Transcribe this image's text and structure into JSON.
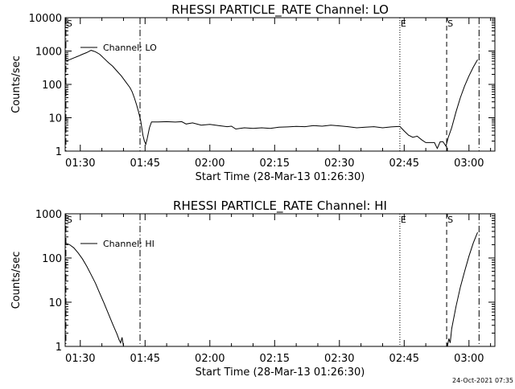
{
  "footer": {
    "timestamp": "24-Oct-2021 07:35"
  },
  "chart_data": [
    {
      "type": "line",
      "title": "RHESSI PARTICLE_RATE Channel: LO",
      "xlabel": "Start Time (28-Mar-13 01:26:30)",
      "ylabel": "Counts/sec",
      "yscale": "log",
      "xlim": [
        "01:26:30",
        "03:06:00"
      ],
      "ylim": [
        1,
        10000
      ],
      "x_tick_labels": [
        "01:30",
        "01:45",
        "02:00",
        "02:15",
        "02:30",
        "02:45",
        "03:00"
      ],
      "y_tick_labels": [
        "10000",
        "1000",
        "100",
        "10",
        "1"
      ],
      "legend": {
        "position": "top-left",
        "entries": [
          "Channel: LO"
        ]
      },
      "line_color": "#000000",
      "markers": [
        {
          "time": "01:26:40",
          "label": "S",
          "style": "dashdot"
        },
        {
          "time": "01:43:50",
          "label": "",
          "style": "dashdot"
        },
        {
          "time": "02:44:00",
          "label": "E",
          "style": "dotted"
        },
        {
          "time": "02:54:50",
          "label": "S",
          "style": "dashed"
        },
        {
          "time": "03:02:20",
          "label": "",
          "style": "dashdot"
        }
      ],
      "series": [
        {
          "name": "Channel: LO",
          "points": [
            [
              "01:26:30",
              500
            ],
            [
              "01:27:30",
              550
            ],
            [
              "01:28:30",
              620
            ],
            [
              "01:29:30",
              700
            ],
            [
              "01:30:30",
              800
            ],
            [
              "01:31:30",
              900
            ],
            [
              "01:32:30",
              1050
            ],
            [
              "01:33:00",
              1000
            ],
            [
              "01:33:30",
              950
            ],
            [
              "01:34:30",
              800
            ],
            [
              "01:35:30",
              600
            ],
            [
              "01:36:30",
              450
            ],
            [
              "01:37:30",
              350
            ],
            [
              "01:38:30",
              250
            ],
            [
              "01:39:30",
              180
            ],
            [
              "01:40:30",
              120
            ],
            [
              "01:41:30",
              80
            ],
            [
              "01:42:00",
              60
            ],
            [
              "01:42:30",
              40
            ],
            [
              "01:43:00",
              25
            ],
            [
              "01:43:30",
              15
            ],
            [
              "01:44:00",
              8
            ],
            [
              "01:44:30",
              3
            ],
            [
              "01:44:50",
              2
            ],
            [
              "01:45:10",
              1.6
            ],
            [
              "01:45:30",
              2.4
            ],
            [
              "01:46:00",
              5
            ],
            [
              "01:46:30",
              7.5
            ],
            [
              "01:48:00",
              7.5
            ],
            [
              "01:50:00",
              7.6
            ],
            [
              "01:52:00",
              7.4
            ],
            [
              "01:53:30",
              7.6
            ],
            [
              "01:54:30",
              6.5
            ],
            [
              "01:56:00",
              7
            ],
            [
              "01:58:00",
              6
            ],
            [
              "02:00:00",
              6.3
            ],
            [
              "02:02:00",
              5.8
            ],
            [
              "02:04:00",
              5.4
            ],
            [
              "02:05:00",
              5.6
            ],
            [
              "02:06:00",
              4.6
            ],
            [
              "02:08:00",
              5
            ],
            [
              "02:10:00",
              4.8
            ],
            [
              "02:12:00",
              5
            ],
            [
              "02:14:00",
              4.8
            ],
            [
              "02:16:00",
              5.2
            ],
            [
              "02:18:00",
              5.3
            ],
            [
              "02:20:00",
              5.5
            ],
            [
              "02:22:00",
              5.4
            ],
            [
              "02:24:00",
              5.8
            ],
            [
              "02:26:00",
              5.6
            ],
            [
              "02:28:00",
              6
            ],
            [
              "02:30:00",
              5.7
            ],
            [
              "02:32:00",
              5.4
            ],
            [
              "02:34:00",
              5
            ],
            [
              "02:36:00",
              5.2
            ],
            [
              "02:38:00",
              5.4
            ],
            [
              "02:40:00",
              5
            ],
            [
              "02:42:00",
              5.3
            ],
            [
              "02:44:00",
              5.5
            ],
            [
              "02:45:00",
              4
            ],
            [
              "02:46:00",
              3
            ],
            [
              "02:47:00",
              2.6
            ],
            [
              "02:48:00",
              2.8
            ],
            [
              "02:49:00",
              2.2
            ],
            [
              "02:50:00",
              1.8
            ],
            [
              "02:51:00",
              1.8
            ],
            [
              "02:52:00",
              1.8
            ],
            [
              "02:52:40",
              1.2
            ],
            [
              "02:53:20",
              1.9
            ],
            [
              "02:54:00",
              1.9
            ],
            [
              "02:54:40",
              1.4
            ],
            [
              "02:55:10",
              2.5
            ],
            [
              "02:56:00",
              5
            ],
            [
              "02:57:00",
              15
            ],
            [
              "02:58:00",
              40
            ],
            [
              "02:59:00",
              90
            ],
            [
              "03:00:00",
              180
            ],
            [
              "03:01:00",
              330
            ],
            [
              "03:02:00",
              550
            ]
          ]
        }
      ]
    },
    {
      "type": "line",
      "title": "RHESSI PARTICLE_RATE Channel: HI",
      "xlabel": "Start Time (28-Mar-13 01:26:30)",
      "ylabel": "Counts/sec",
      "yscale": "log",
      "xlim": [
        "01:26:30",
        "03:06:00"
      ],
      "ylim": [
        1,
        1000
      ],
      "x_tick_labels": [
        "01:30",
        "01:45",
        "02:00",
        "02:15",
        "02:30",
        "02:45",
        "03:00"
      ],
      "y_tick_labels": [
        "1000",
        "100",
        "10",
        "1"
      ],
      "legend": {
        "position": "top-left",
        "entries": [
          "Channel: HI"
        ]
      },
      "line_color": "#000000",
      "markers": [
        {
          "time": "01:26:40",
          "label": "S",
          "style": "dashdot"
        },
        {
          "time": "01:43:50",
          "label": "",
          "style": "dashdot"
        },
        {
          "time": "02:44:00",
          "label": "E",
          "style": "dotted"
        },
        {
          "time": "02:54:50",
          "label": "S",
          "style": "dashed"
        },
        {
          "time": "03:02:20",
          "label": "",
          "style": "dashdot"
        }
      ],
      "series": [
        {
          "name": "Channel: HI",
          "segments": [
            [
              [
                "01:26:30",
                220
              ],
              [
                "01:27:30",
                200
              ],
              [
                "01:28:30",
                170
              ],
              [
                "01:29:30",
                130
              ],
              [
                "01:30:30",
                95
              ],
              [
                "01:31:30",
                65
              ],
              [
                "01:32:30",
                42
              ],
              [
                "01:33:30",
                27
              ],
              [
                "01:34:30",
                16
              ],
              [
                "01:35:30",
                9.5
              ],
              [
                "01:36:30",
                5.5
              ],
              [
                "01:37:30",
                3.2
              ],
              [
                "01:38:30",
                1.9
              ],
              [
                "01:39:00",
                1.4
              ],
              [
                "01:39:20",
                1.2
              ],
              [
                "01:39:40",
                1.6
              ],
              [
                "01:40:00",
                1.0
              ]
            ],
            [
              [
                "02:55:00",
                1.0
              ],
              [
                "02:55:20",
                1.5
              ],
              [
                "02:55:40",
                1.2
              ],
              [
                "02:56:00",
                2.5
              ],
              [
                "02:57:00",
                8
              ],
              [
                "02:58:00",
                22
              ],
              [
                "02:59:00",
                50
              ],
              [
                "03:00:00",
                110
              ],
              [
                "03:01:00",
                220
              ],
              [
                "03:02:00",
                380
              ]
            ]
          ]
        }
      ]
    }
  ]
}
